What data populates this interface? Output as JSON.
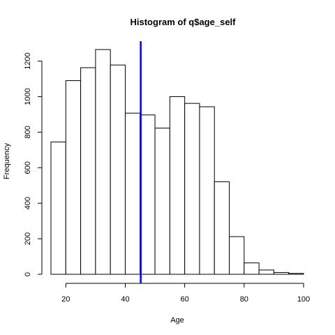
{
  "chart_data": {
    "type": "bar",
    "title": "Histogram of q$age_self",
    "xlabel": "Age",
    "ylabel": "Frequency",
    "xlim": [
      15,
      100
    ],
    "ylim": [
      0,
      1265
    ],
    "bin_edges": [
      15,
      20,
      25,
      30,
      35,
      40,
      45,
      50,
      55,
      60,
      65,
      70,
      75,
      80,
      85,
      90,
      95,
      100
    ],
    "values": [
      745,
      1090,
      1163,
      1265,
      1178,
      907,
      897,
      823,
      1000,
      962,
      943,
      521,
      212,
      64,
      24,
      10,
      5
    ],
    "x_ticks": [
      20,
      40,
      60,
      80,
      100
    ],
    "y_ticks": [
      0,
      200,
      400,
      600,
      800,
      1000,
      1200
    ],
    "grid": false,
    "bar_fill": "#ffffff",
    "bar_stroke": "#000000",
    "vline": {
      "x": 45.2,
      "color": "#0000ff"
    }
  }
}
